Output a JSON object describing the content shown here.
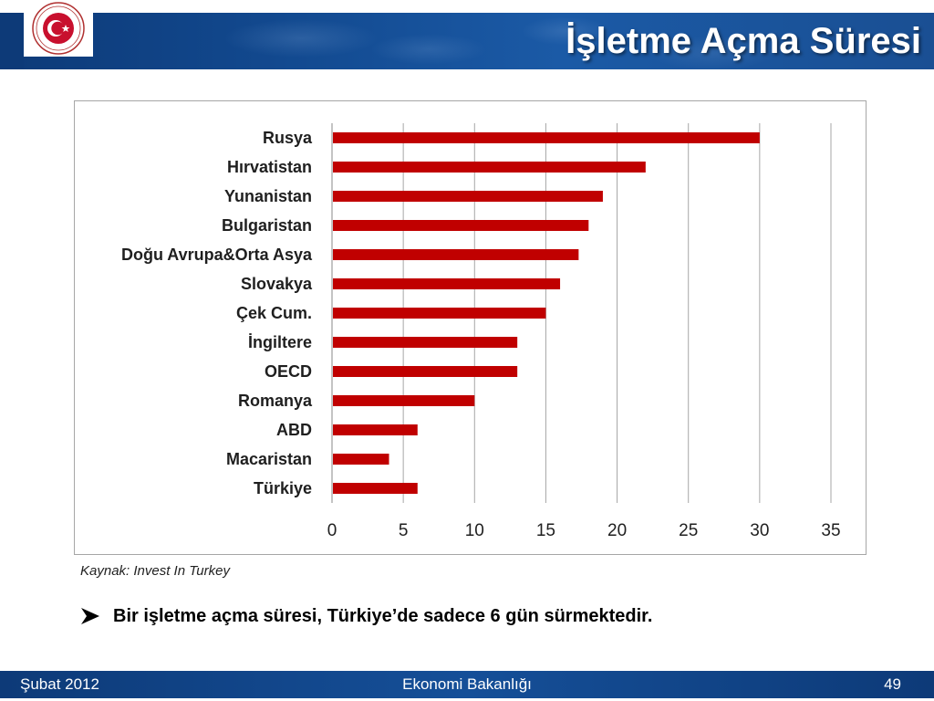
{
  "header": {
    "title": "İşletme Açma Süresi",
    "logo_name": "republic-of-turkey-ministry-of-economy-seal"
  },
  "colors": {
    "bar": "#c00000",
    "header_blue": "#12498f",
    "grid": "#a6a6a6"
  },
  "chart_data": {
    "type": "bar",
    "orientation": "horizontal",
    "categories": [
      "Rusya",
      "Hırvatistan",
      "Yunanistan",
      "Bulgaristan",
      "Doğu Avrupa&Orta Asya",
      "Slovakya",
      "Çek Cum.",
      "İngiltere",
      "OECD",
      "Romanya",
      "ABD",
      "Macaristan",
      "Türkiye"
    ],
    "values": [
      30,
      22,
      19,
      18,
      17.3,
      16,
      15,
      13,
      13,
      10,
      6,
      4,
      6
    ],
    "xlim": [
      0,
      35
    ],
    "xticks": [
      "0",
      "5",
      "10",
      "15",
      "20",
      "25",
      "30",
      "35"
    ],
    "grid": true,
    "legend": false
  },
  "source": "Kaynak: Invest In Turkey",
  "bullet": "Bir işletme açma süresi, Türkiye’de sadece 6 gün sürmektedir.",
  "footer": {
    "date": "Şubat 2012",
    "org": "Ekonomi Bakanlığı",
    "page": "49"
  }
}
